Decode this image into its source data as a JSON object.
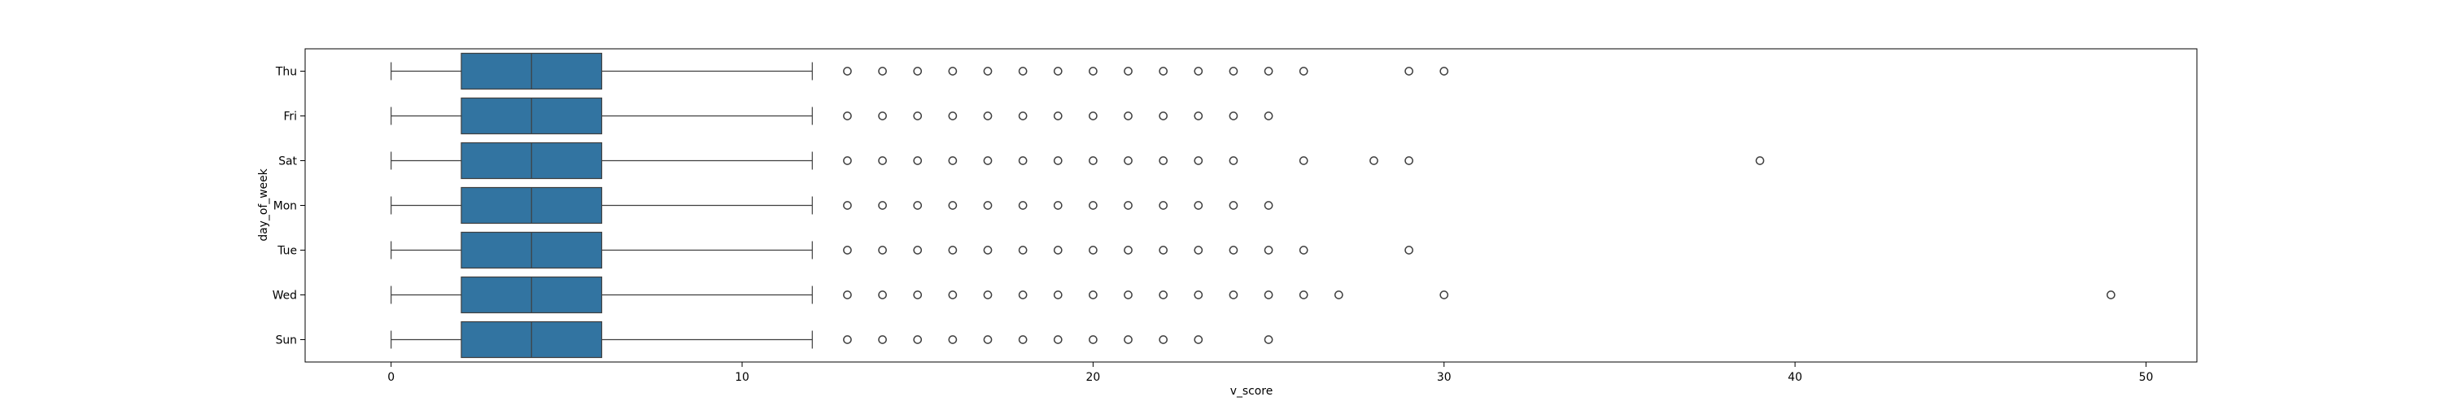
{
  "chart_data": {
    "type": "box",
    "orientation": "horizontal",
    "title": "",
    "xlabel": "v_score",
    "ylabel": "day_of_week",
    "xlim": [
      -2.45,
      51.45
    ],
    "x_ticks": [
      0,
      10,
      20,
      30,
      40,
      50
    ],
    "grid": false,
    "box_color": "#3274a1",
    "categories": [
      "Thu",
      "Fri",
      "Sat",
      "Mon",
      "Tue",
      "Wed",
      "Sun"
    ],
    "boxes": [
      {
        "category": "Thu",
        "whisker_low": 0,
        "q1": 2,
        "median": 4,
        "q3": 6,
        "whisker_high": 12,
        "outliers": [
          13,
          14,
          15,
          16,
          17,
          18,
          19,
          20,
          21,
          22,
          23,
          24,
          25,
          26,
          29,
          30
        ]
      },
      {
        "category": "Fri",
        "whisker_low": 0,
        "q1": 2,
        "median": 4,
        "q3": 6,
        "whisker_high": 12,
        "outliers": [
          13,
          14,
          15,
          16,
          17,
          18,
          19,
          20,
          21,
          22,
          23,
          24,
          25
        ]
      },
      {
        "category": "Sat",
        "whisker_low": 0,
        "q1": 2,
        "median": 4,
        "q3": 6,
        "whisker_high": 12,
        "outliers": [
          13,
          14,
          15,
          16,
          17,
          18,
          19,
          20,
          21,
          22,
          23,
          24,
          26,
          28,
          29,
          39
        ]
      },
      {
        "category": "Mon",
        "whisker_low": 0,
        "q1": 2,
        "median": 4,
        "q3": 6,
        "whisker_high": 12,
        "outliers": [
          13,
          14,
          15,
          16,
          17,
          18,
          19,
          20,
          21,
          22,
          23,
          24,
          25
        ]
      },
      {
        "category": "Tue",
        "whisker_low": 0,
        "q1": 2,
        "median": 4,
        "q3": 6,
        "whisker_high": 12,
        "outliers": [
          13,
          14,
          15,
          16,
          17,
          18,
          19,
          20,
          21,
          22,
          23,
          24,
          25,
          26,
          29
        ]
      },
      {
        "category": "Wed",
        "whisker_low": 0,
        "q1": 2,
        "median": 4,
        "q3": 6,
        "whisker_high": 12,
        "outliers": [
          13,
          14,
          15,
          16,
          17,
          18,
          19,
          20,
          21,
          22,
          23,
          24,
          25,
          26,
          27,
          30,
          49
        ]
      },
      {
        "category": "Sun",
        "whisker_low": 0,
        "q1": 2,
        "median": 4,
        "q3": 6,
        "whisker_high": 12,
        "outliers": [
          13,
          14,
          15,
          16,
          17,
          18,
          19,
          20,
          21,
          22,
          23,
          25
        ]
      }
    ]
  }
}
